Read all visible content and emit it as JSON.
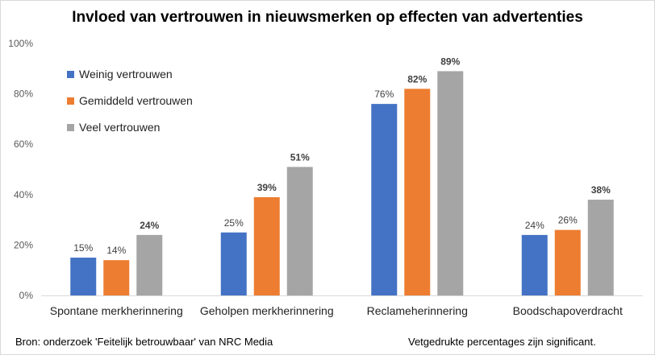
{
  "chart_data": {
    "type": "bar",
    "title": "Invloed van vertrouwen in nieuwsmerken op effecten van advertenties",
    "categories": [
      "Spontane merkherinnering",
      "Geholpen merkherinnering",
      "Reclameherinnering",
      "Boodschapoverdracht"
    ],
    "series": [
      {
        "name": "Weinig vertrouwen",
        "color": "#4472c4",
        "values": [
          15,
          25,
          76,
          24
        ],
        "labels": [
          "15%",
          "25%",
          "76%",
          "24%"
        ],
        "bold": [
          false,
          false,
          false,
          false
        ]
      },
      {
        "name": "Gemiddeld vertrouwen",
        "color": "#ed7d31",
        "values": [
          14,
          39,
          82,
          26
        ],
        "labels": [
          "14%",
          "39%",
          "82%",
          "26%"
        ],
        "bold": [
          false,
          true,
          true,
          false
        ]
      },
      {
        "name": "Veel vertrouwen",
        "color": "#a5a5a5",
        "values": [
          24,
          51,
          89,
          38
        ],
        "labels": [
          "24%",
          "51%",
          "89%",
          "38%"
        ],
        "bold": [
          true,
          true,
          true,
          true
        ]
      }
    ],
    "ylim": [
      0,
      100
    ],
    "yticks": [
      "0%",
      "20%",
      "40%",
      "60%",
      "80%",
      "100%"
    ],
    "grid": false,
    "legend_position": "top-left"
  },
  "footer": {
    "source": "Bron: onderzoek 'Feitelijk betrouwbaar' van NRC Media",
    "note": "Vetgedrukte percentages zijn significant."
  }
}
